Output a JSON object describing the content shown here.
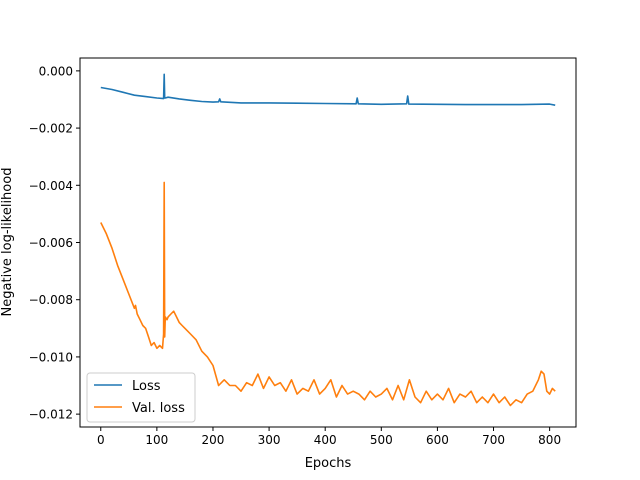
{
  "chart_data": {
    "type": "line",
    "title": "",
    "xlabel": "Epochs",
    "ylabel": "Negative log-likelihood",
    "xlim": [
      -37,
      847
    ],
    "ylim": [
      -0.01245,
      0.00045
    ],
    "xticks": [
      0,
      100,
      200,
      300,
      400,
      500,
      600,
      700,
      800
    ],
    "xtick_labels": [
      "0",
      "100",
      "200",
      "300",
      "400",
      "500",
      "600",
      "700",
      "800"
    ],
    "yticks": [
      0.0,
      -0.002,
      -0.004,
      -0.006,
      -0.008,
      -0.01,
      -0.012
    ],
    "ytick_labels": [
      "0.000",
      "−0.002",
      "−0.004",
      "−0.006",
      "−0.008",
      "−0.010",
      "−0.012"
    ],
    "grid": false,
    "legend": {
      "placement": "lower-left"
    },
    "series": [
      {
        "name": "Loss",
        "color": "#1f77b4",
        "x": [
          0,
          20,
          40,
          60,
          80,
          100,
          112,
          113,
          114,
          115,
          120,
          140,
          160,
          180,
          200,
          210,
          212,
          214,
          250,
          300,
          350,
          400,
          455,
          457,
          459,
          500,
          545,
          547,
          549,
          600,
          650,
          700,
          750,
          800,
          810
        ],
        "y": [
          -0.00058,
          -0.00065,
          -0.00075,
          -0.00085,
          -0.0009,
          -0.00095,
          -0.00097,
          -0.00012,
          -0.00095,
          -0.00095,
          -0.00092,
          -0.00098,
          -0.00103,
          -0.00107,
          -0.00109,
          -0.00108,
          -0.00098,
          -0.00108,
          -0.00112,
          -0.00112,
          -0.00113,
          -0.00114,
          -0.00115,
          -0.00095,
          -0.00115,
          -0.00117,
          -0.00115,
          -0.00088,
          -0.00116,
          -0.00117,
          -0.00118,
          -0.00118,
          -0.00118,
          -0.00116,
          -0.0012
        ]
      },
      {
        "name": "Val. loss",
        "color": "#ff7f0e",
        "x": [
          0,
          10,
          20,
          30,
          40,
          50,
          60,
          62,
          65,
          70,
          75,
          80,
          85,
          90,
          95,
          100,
          105,
          110,
          112,
          113,
          114,
          115,
          118,
          120,
          125,
          130,
          135,
          140,
          145,
          150,
          160,
          170,
          180,
          190,
          200,
          210,
          220,
          230,
          240,
          250,
          260,
          270,
          280,
          290,
          300,
          310,
          320,
          330,
          340,
          350,
          360,
          370,
          380,
          390,
          400,
          410,
          420,
          430,
          440,
          450,
          460,
          470,
          480,
          490,
          500,
          510,
          520,
          530,
          540,
          550,
          560,
          570,
          580,
          590,
          600,
          610,
          620,
          630,
          640,
          650,
          660,
          670,
          680,
          690,
          700,
          710,
          720,
          730,
          740,
          750,
          760,
          770,
          780,
          785,
          790,
          795,
          800,
          805,
          810
        ],
        "y": [
          -0.0053,
          -0.0057,
          -0.0062,
          -0.0068,
          -0.0073,
          -0.0078,
          -0.0083,
          -0.0082,
          -0.0085,
          -0.0087,
          -0.0089,
          -0.009,
          -0.0093,
          -0.0096,
          -0.0095,
          -0.0097,
          -0.0096,
          -0.0097,
          -0.0092,
          -0.0039,
          -0.0093,
          -0.0086,
          -0.0087,
          -0.0086,
          -0.0085,
          -0.0084,
          -0.0086,
          -0.0088,
          -0.0089,
          -0.009,
          -0.0092,
          -0.0094,
          -0.0098,
          -0.01,
          -0.0103,
          -0.011,
          -0.0108,
          -0.011,
          -0.011,
          -0.0112,
          -0.0109,
          -0.011,
          -0.0106,
          -0.0111,
          -0.0107,
          -0.011,
          -0.0109,
          -0.0112,
          -0.0108,
          -0.0113,
          -0.0111,
          -0.0112,
          -0.0108,
          -0.0113,
          -0.0111,
          -0.0108,
          -0.0114,
          -0.011,
          -0.0113,
          -0.0112,
          -0.0113,
          -0.0115,
          -0.0112,
          -0.0114,
          -0.0113,
          -0.0111,
          -0.0115,
          -0.011,
          -0.0115,
          -0.0108,
          -0.0114,
          -0.0116,
          -0.0112,
          -0.0115,
          -0.0113,
          -0.0115,
          -0.0111,
          -0.0116,
          -0.0113,
          -0.0114,
          -0.0112,
          -0.0116,
          -0.0114,
          -0.0116,
          -0.0113,
          -0.0116,
          -0.0114,
          -0.0117,
          -0.0115,
          -0.0116,
          -0.0113,
          -0.0112,
          -0.0108,
          -0.0105,
          -0.0106,
          -0.0112,
          -0.0113,
          -0.0111,
          -0.0112
        ]
      }
    ]
  }
}
